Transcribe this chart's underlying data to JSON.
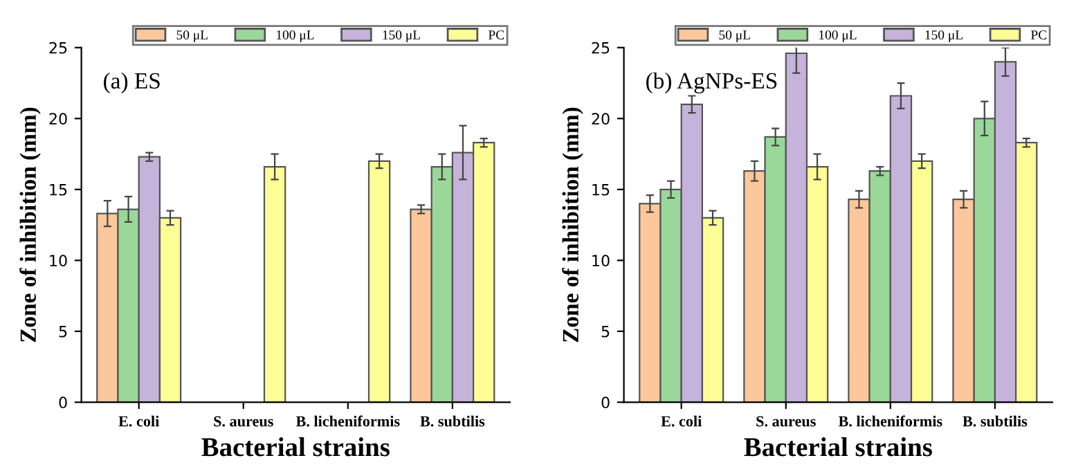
{
  "chart_data": [
    {
      "type": "bar",
      "title": "(a) ES",
      "xlabel": "Bacterial strains",
      "ylabel": "Zone of inhibition (mm)",
      "categories": [
        "E. coli",
        "S. aureus",
        "B. licheniformis",
        "B. subtilis"
      ],
      "ylim": [
        0,
        25
      ],
      "yticks": [
        0,
        5,
        10,
        15,
        20,
        25
      ],
      "grid": false,
      "legend": "top right",
      "series": [
        {
          "name": "50 μL",
          "color": "#fcc89b",
          "values": [
            13.3,
            null,
            null,
            13.6
          ],
          "errors": [
            0.9,
            null,
            null,
            0.3
          ]
        },
        {
          "name": "100 μL",
          "color": "#9ad89a",
          "values": [
            13.6,
            null,
            null,
            16.6
          ],
          "errors": [
            0.9,
            null,
            null,
            0.9
          ]
        },
        {
          "name": "150 μL",
          "color": "#c5b3db",
          "values": [
            17.3,
            null,
            null,
            17.6
          ],
          "errors": [
            0.3,
            null,
            null,
            1.9
          ]
        },
        {
          "name": "PC",
          "color": "#fdfd96",
          "values": [
            13.0,
            16.6,
            17.0,
            18.3
          ],
          "errors": [
            0.5,
            0.9,
            0.5,
            0.3
          ]
        }
      ]
    },
    {
      "type": "bar",
      "title": "(b) AgNPs-ES",
      "xlabel": "Bacterial strains",
      "ylabel": "Zone of inhibition (mm)",
      "categories": [
        "E. coli",
        "S. aureus",
        "B. licheniformis",
        "B. subtilis"
      ],
      "ylim": [
        0,
        25
      ],
      "yticks": [
        0,
        5,
        10,
        15,
        20,
        25
      ],
      "grid": false,
      "legend": "top right",
      "series": [
        {
          "name": "50 μL",
          "color": "#fcc89b",
          "values": [
            14.0,
            16.3,
            14.3,
            14.3
          ],
          "errors": [
            0.6,
            0.7,
            0.6,
            0.6
          ]
        },
        {
          "name": "100 μL",
          "color": "#9ad89a",
          "values": [
            15.0,
            18.7,
            16.3,
            20.0
          ],
          "errors": [
            0.6,
            0.6,
            0.3,
            1.2
          ]
        },
        {
          "name": "150 μL",
          "color": "#c5b3db",
          "values": [
            21.0,
            24.6,
            21.6,
            24.0
          ],
          "errors": [
            0.6,
            1.4,
            0.9,
            1.0
          ]
        },
        {
          "name": "PC",
          "color": "#fdfd96",
          "values": [
            13.0,
            16.6,
            17.0,
            18.3
          ],
          "errors": [
            0.5,
            0.9,
            0.5,
            0.3
          ]
        }
      ]
    }
  ]
}
